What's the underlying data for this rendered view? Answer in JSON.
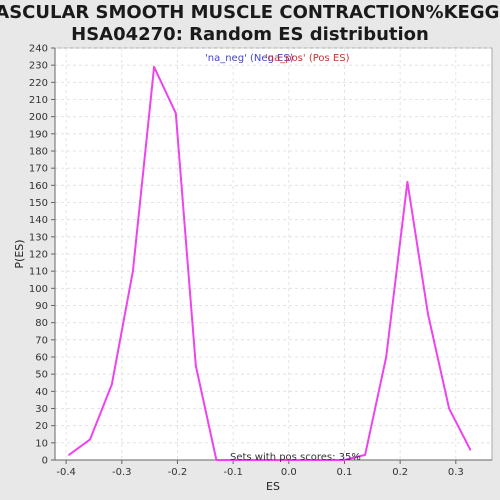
{
  "chart_data": {
    "type": "line",
    "title_line1": "VASCULAR SMOOTH MUSCLE CONTRACTION%KEGG%",
    "title_line2": "HSA04270: Random ES distribution",
    "xlabel": "ES",
    "ylabel": "P(ES)",
    "xlim": [
      -0.42,
      0.365
    ],
    "ylim": [
      0,
      240
    ],
    "x_ticks": [
      -0.4,
      -0.3,
      -0.2,
      -0.1,
      0.0,
      0.1,
      0.2,
      0.3
    ],
    "x_tick_labels": [
      "-0.4",
      "-0.3",
      "-0.2",
      "-0.1",
      "0.0",
      "0.1",
      "0.2",
      "0.3"
    ],
    "y_ticks": [
      0,
      10,
      20,
      30,
      40,
      50,
      60,
      70,
      80,
      90,
      100,
      110,
      120,
      130,
      140,
      150,
      160,
      170,
      180,
      190,
      200,
      210,
      220,
      230,
      240
    ],
    "y_tick_labels": [
      "0",
      "10",
      "20",
      "30",
      "40",
      "50",
      "60",
      "70",
      "80",
      "90",
      "100",
      "110",
      "120",
      "130",
      "140",
      "150",
      "160",
      "170",
      "180",
      "190",
      "200",
      "210",
      "220",
      "230",
      "240"
    ],
    "grid": true,
    "line_color": "#ee44ee",
    "series": [
      {
        "x": [
          -0.395,
          -0.357,
          -0.318,
          -0.28,
          -0.242,
          -0.203,
          -0.167,
          -0.13,
          0.1,
          0.137,
          0.175,
          0.213,
          0.25,
          0.288,
          0.326
        ],
        "values": [
          3,
          12,
          44,
          110,
          229,
          202,
          55,
          0,
          0,
          3,
          60,
          162,
          85,
          30,
          6
        ]
      }
    ],
    "legend": {
      "placement": "top-center",
      "items": [
        {
          "label": "'na_neg' (Neg ES)",
          "color": "#4444cc"
        },
        {
          "label": "'na_pos' (Pos ES)",
          "color": "#cc3333"
        }
      ]
    },
    "annotation": "Sets with pos scores: 35%"
  }
}
